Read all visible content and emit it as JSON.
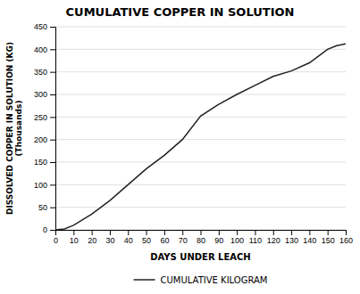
{
  "chart_data": {
    "type": "line",
    "title": "CUMULATIVE COPPER IN SOLUTION",
    "x_label": "DAYS UNDER LEACH",
    "y_label": "DISSOLVED COPPER IN SOLUTION (KG)\n(Thousands)",
    "x": [
      0,
      5,
      10,
      20,
      30,
      40,
      50,
      60,
      70,
      80,
      90,
      100,
      110,
      120,
      130,
      140,
      150,
      155,
      160
    ],
    "series": [
      {
        "name": "CUMULATIVE KILOGRAM",
        "color": "#222222",
        "values": [
          0,
          2,
          10,
          35,
          65,
          100,
          135,
          165,
          200,
          252,
          278,
          300,
          320,
          340,
          352,
          370,
          400,
          408,
          412
        ]
      }
    ],
    "xlim": [
      0,
      160
    ],
    "xticks": [
      0,
      10,
      20,
      30,
      40,
      50,
      60,
      70,
      80,
      90,
      100,
      110,
      120,
      130,
      140,
      150,
      160
    ],
    "ylim": [
      0,
      450
    ],
    "yticks": [
      0,
      50,
      100,
      150,
      200,
      250,
      300,
      350,
      400,
      450
    ],
    "grid": true,
    "legend": "bottom"
  }
}
